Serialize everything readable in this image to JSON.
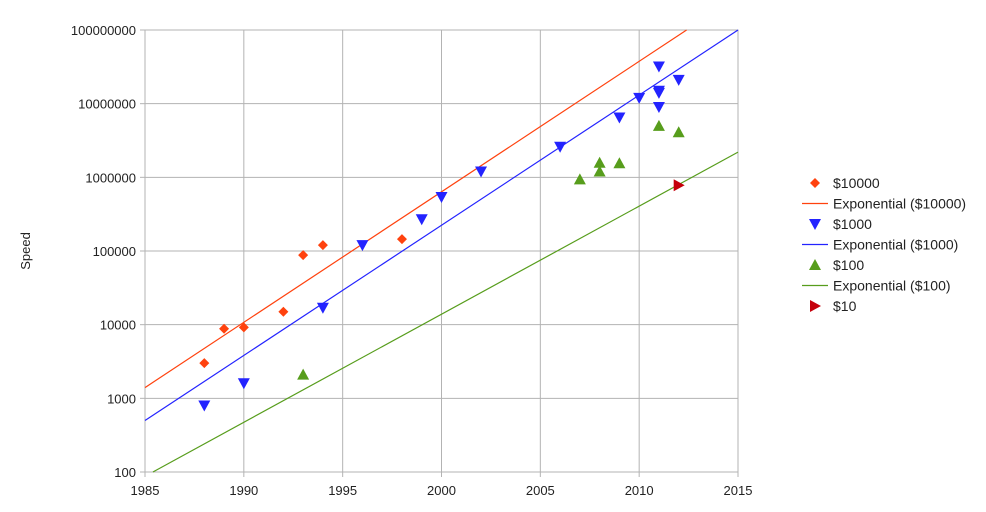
{
  "chart_data": {
    "type": "scatter",
    "title": "",
    "xlabel": "",
    "ylabel": "Speed",
    "xlim": [
      1985,
      2015
    ],
    "ylim": [
      100,
      100000000
    ],
    "yscale": "log",
    "grid": true,
    "legend_position": "right",
    "x_ticks": [
      1985,
      1990,
      1995,
      2000,
      2005,
      2010,
      2015
    ],
    "y_ticks": [
      100,
      1000,
      10000,
      100000,
      1000000,
      10000000,
      100000000
    ],
    "y_tick_labels": [
      "100",
      "1000",
      "10000",
      "100000",
      "1000000",
      "10000000",
      "100000000"
    ],
    "series": [
      {
        "name": "$10000",
        "marker": "diamond",
        "color": "#ff420e",
        "points": [
          [
            1988,
            3000
          ],
          [
            1989,
            8800
          ],
          [
            1990,
            9200
          ],
          [
            1992,
            15000
          ],
          [
            1993,
            88000
          ],
          [
            1994,
            120000
          ],
          [
            1998,
            145000
          ]
        ]
      },
      {
        "name": "Exponential ($10000)",
        "type": "trendline",
        "color": "#ff420e",
        "points": [
          [
            1985,
            1400
          ],
          [
            2012.4,
            100000000
          ]
        ]
      },
      {
        "name": "$1000",
        "marker": "triangle-down",
        "color": "#2323ff",
        "points": [
          [
            1988,
            800
          ],
          [
            1990,
            1600
          ],
          [
            1994,
            17000
          ],
          [
            1996,
            120000
          ],
          [
            1999,
            270000
          ],
          [
            2000,
            540000
          ],
          [
            2002,
            1200000
          ],
          [
            2006,
            2600000
          ],
          [
            2009,
            6500000
          ],
          [
            2010,
            12000000
          ],
          [
            2011,
            14000000
          ],
          [
            2011,
            15000000
          ],
          [
            2011,
            9000000
          ],
          [
            2011,
            32000000
          ],
          [
            2012,
            21000000
          ]
        ]
      },
      {
        "name": "Exponential ($1000)",
        "type": "trendline",
        "color": "#2323ff",
        "points": [
          [
            1985,
            500
          ],
          [
            2015,
            100000000
          ]
        ]
      },
      {
        "name": "$100",
        "marker": "triangle-up",
        "color": "#579d1c",
        "points": [
          [
            1993,
            2100
          ],
          [
            2007,
            940000
          ],
          [
            2008,
            1200000
          ],
          [
            2008,
            1580000
          ],
          [
            2009,
            1550000
          ],
          [
            2011,
            5000000
          ],
          [
            2012,
            4100000
          ]
        ]
      },
      {
        "name": "Exponential ($100)",
        "type": "trendline",
        "color": "#579d1c",
        "points": [
          [
            1985.4,
            100
          ],
          [
            2015,
            2200000
          ]
        ]
      },
      {
        "name": "$10",
        "marker": "triangle-right",
        "color": "#c5000b",
        "points": [
          [
            2012,
            780000
          ]
        ]
      }
    ]
  }
}
